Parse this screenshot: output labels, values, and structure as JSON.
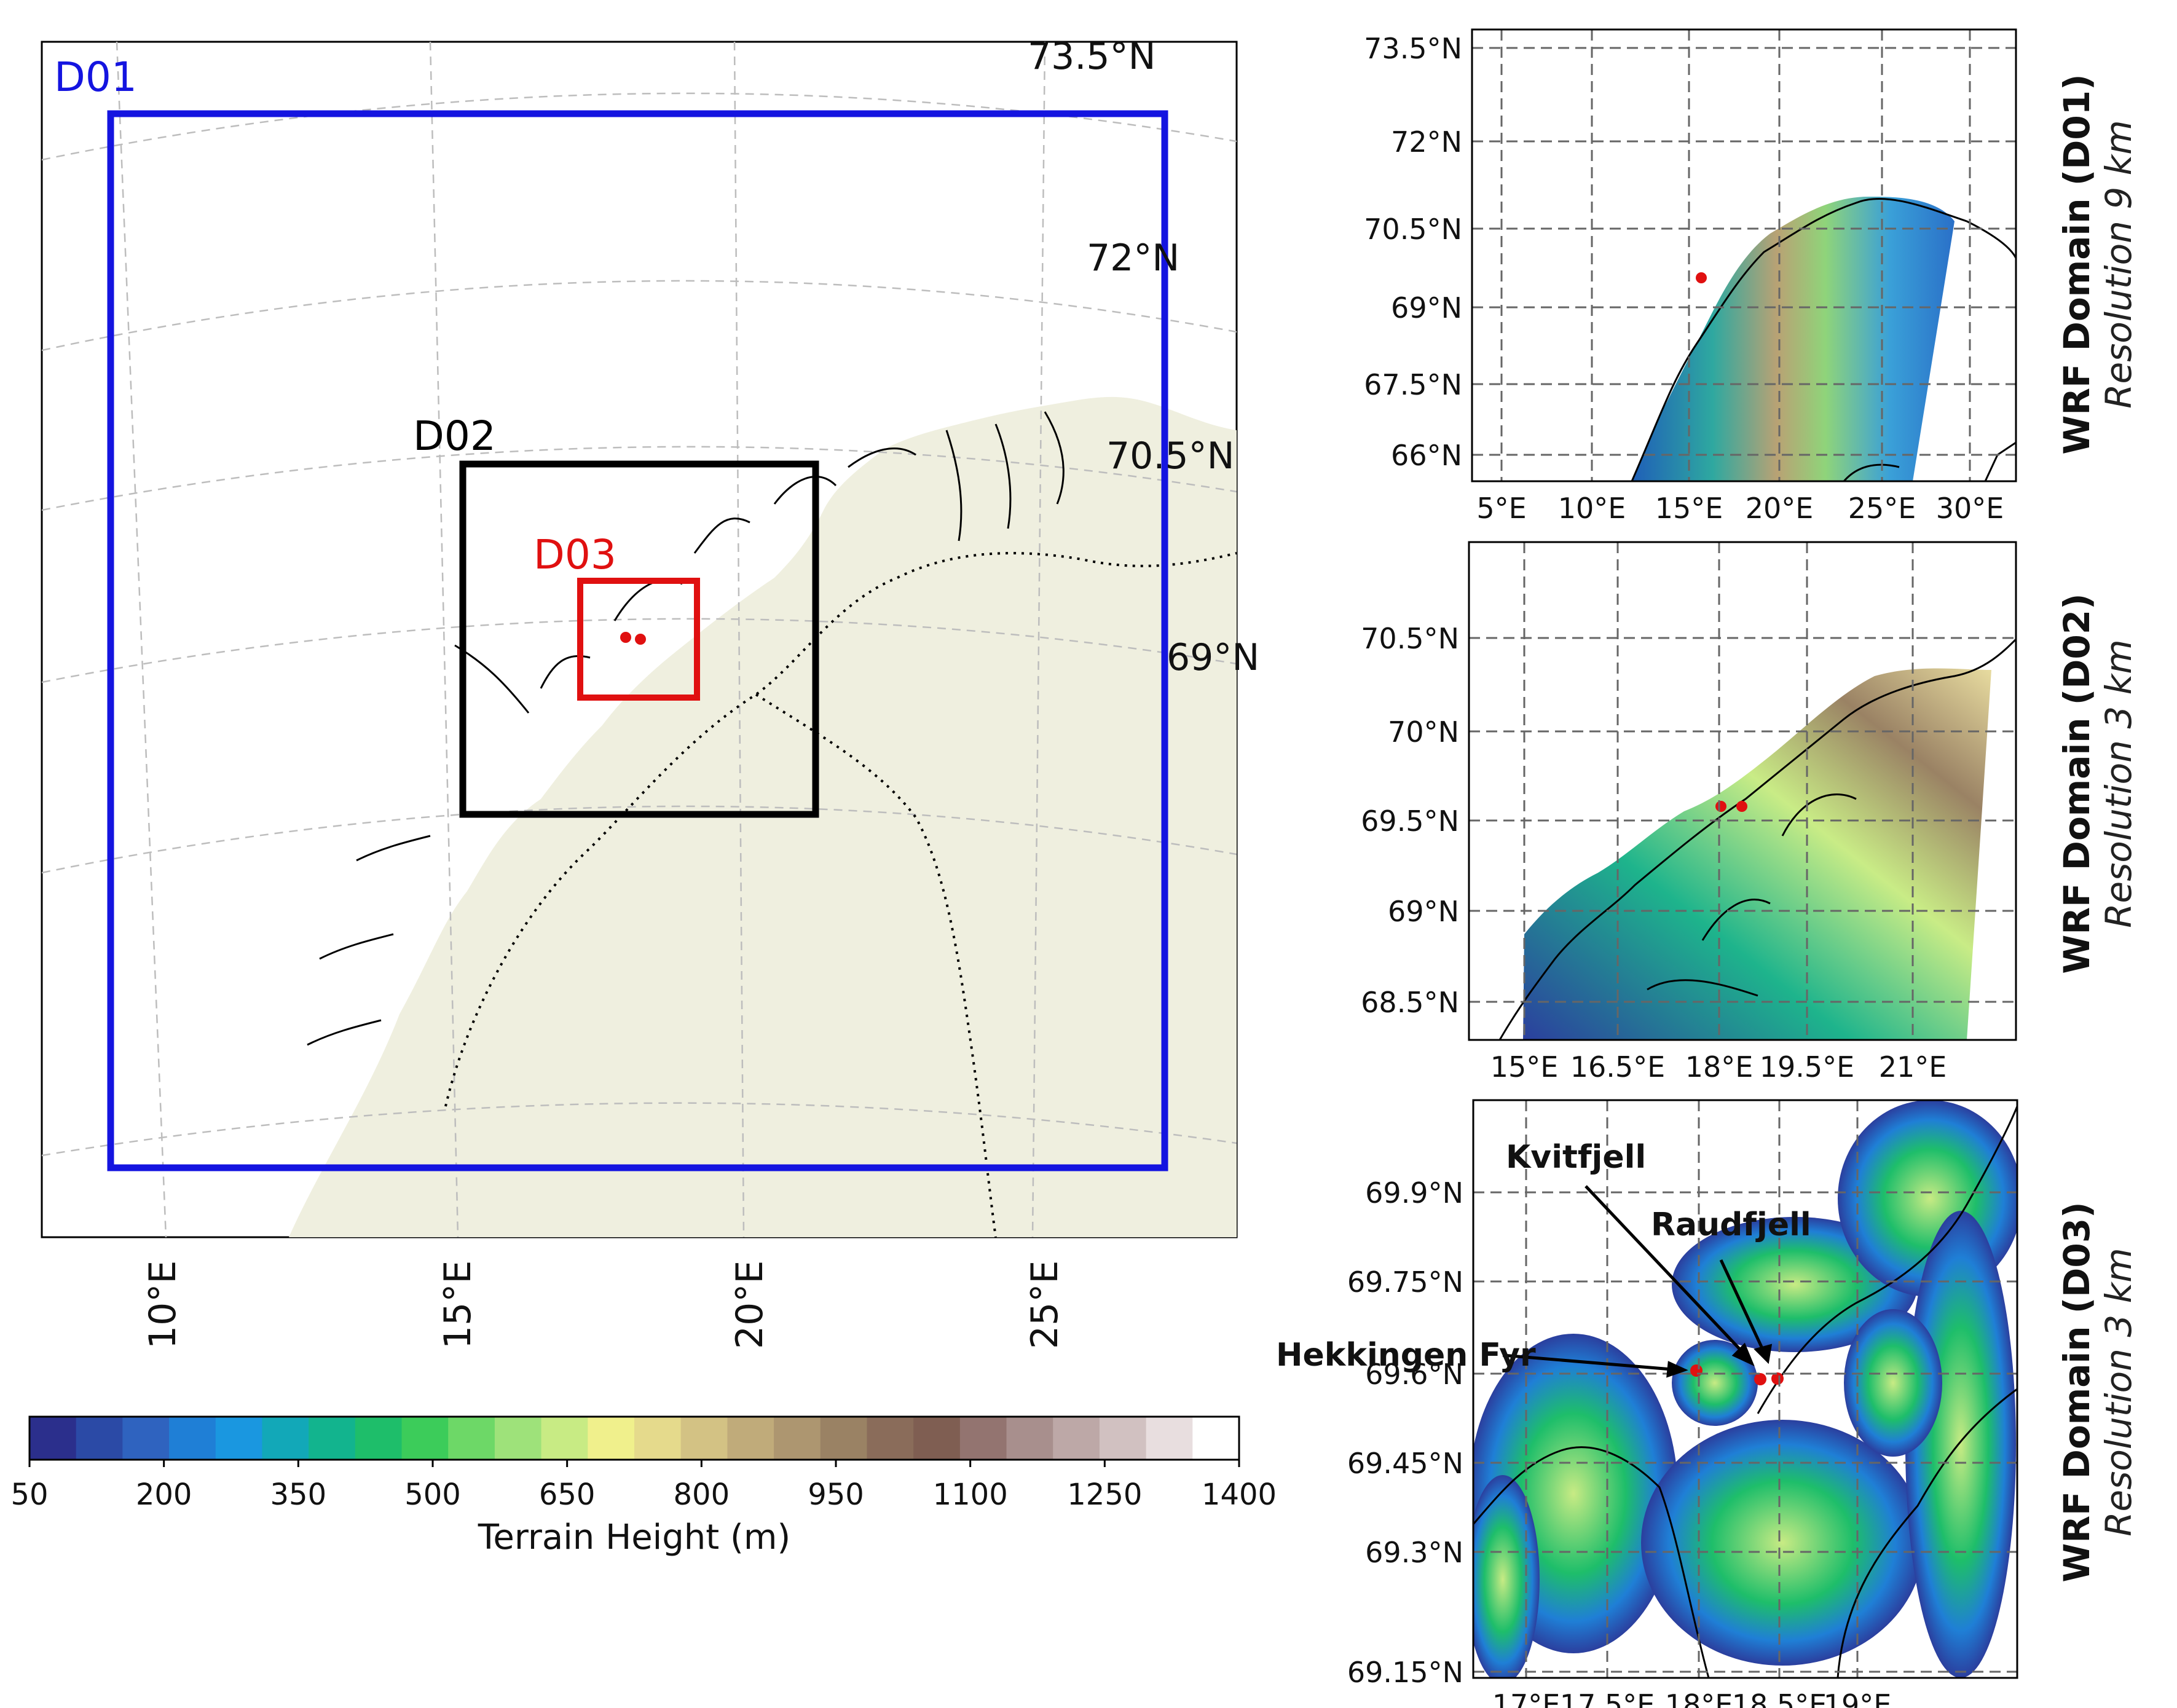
{
  "main_map": {
    "domains": [
      {
        "id": "d01",
        "label": "D01",
        "color": "#1414e0"
      },
      {
        "id": "d02",
        "label": "D02",
        "color": "#000000"
      },
      {
        "id": "d03",
        "label": "D03",
        "color": "#e01010"
      }
    ],
    "lat_labels": [
      "73.5°N",
      "72°N",
      "70.5°N",
      "69°N"
    ],
    "lon_labels": [
      "10°E",
      "15°E",
      "20°E",
      "25°E"
    ],
    "colors": {
      "land": "#efefdf",
      "grid": "#bdbdbd",
      "site": "#e01010"
    }
  },
  "colorbar": {
    "label": "Terrain Height (m)",
    "ticks": [
      "50",
      "200",
      "350",
      "500",
      "650",
      "800",
      "950",
      "1100",
      "1250",
      "1400"
    ],
    "colors": [
      "#2b2f8c",
      "#2b4aa6",
      "#2f63bf",
      "#1f7fd6",
      "#1a97e0",
      "#12a8b8",
      "#12b48e",
      "#1ebe6a",
      "#3ccc5a",
      "#6dd867",
      "#9ee27a",
      "#c8eb84",
      "#f0f08c",
      "#e5da8c",
      "#d3c284",
      "#c0ab7a",
      "#ad9670",
      "#9a8264",
      "#8a6c5a",
      "#7f5e52",
      "#937470",
      "#a88f8d",
      "#bda8a7",
      "#d1c1c1",
      "#e8dedf",
      "#ffffff"
    ]
  },
  "panels": [
    {
      "id": "d01",
      "caption_title": "WRF Domain (D01)",
      "caption_res": "Resolution 9 km",
      "lat_labels": [
        "73.5°N",
        "72°N",
        "70.5°N",
        "69°N",
        "67.5°N",
        "66°N"
      ],
      "lon_labels": [
        "5°E",
        "10°E",
        "15°E",
        "20°E",
        "25°E",
        "30°E"
      ]
    },
    {
      "id": "d02",
      "caption_title": "WRF Domain (D02)",
      "caption_res": "Resolution 3 km",
      "lat_labels": [
        "70.5°N",
        "70°N",
        "69.5°N",
        "69°N",
        "68.5°N"
      ],
      "lon_labels": [
        "15°E",
        "16.5°E",
        "18°E",
        "19.5°E",
        "21°E"
      ]
    },
    {
      "id": "d03",
      "caption_title": "WRF Domain (D03)",
      "caption_res": "Resolution 3 km",
      "lat_labels": [
        "69.9°N",
        "69.75°N",
        "69.6°N",
        "69.45°N",
        "69.3°N",
        "69.15°N"
      ],
      "lon_labels": [
        "17°E",
        "17.5°E",
        "18°E",
        "18.5°E",
        "19°E"
      ],
      "sites": [
        "Kvitfjell",
        "Raudfjell",
        "Hekkingen Fyr"
      ]
    }
  ]
}
